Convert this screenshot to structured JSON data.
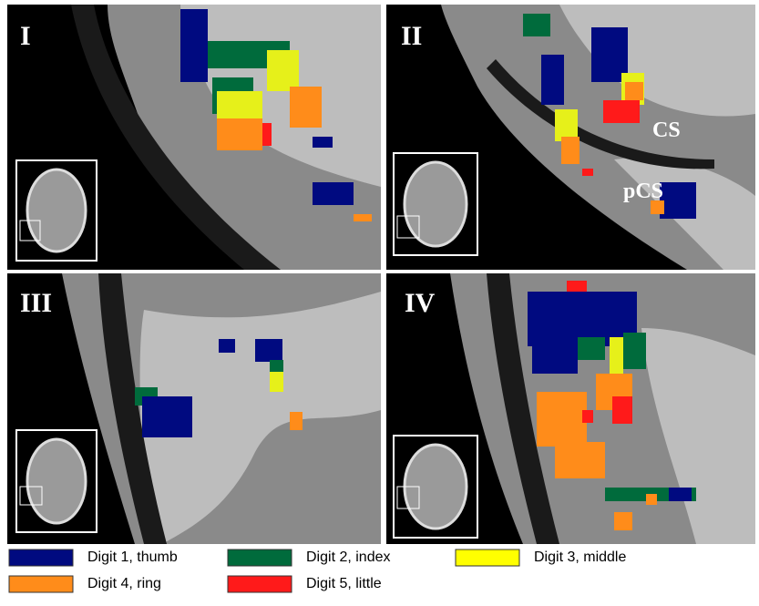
{
  "panels": [
    {
      "label": "I"
    },
    {
      "label": "II",
      "annotations": [
        "CS",
        "pCS"
      ]
    },
    {
      "label": "III"
    },
    {
      "label": "IV"
    }
  ],
  "legend": [
    {
      "label": "Digit 1, thumb",
      "color": "#000a80"
    },
    {
      "label": "Digit 2, index",
      "color": "#006b3c"
    },
    {
      "label": "Digit 3, middle",
      "color": "#ffff00"
    },
    {
      "label": "Digit 4, ring",
      "color": "#ff8c1a"
    },
    {
      "label": "Digit 5, little",
      "color": "#ff1a1a"
    }
  ]
}
